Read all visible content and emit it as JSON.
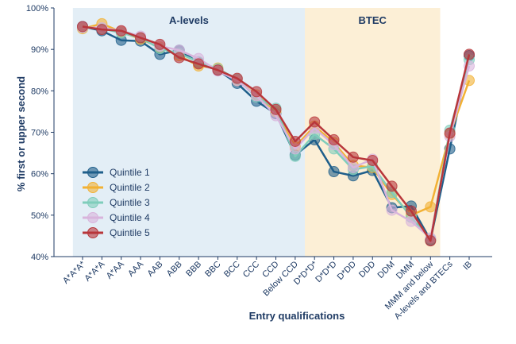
{
  "chart_data": {
    "type": "line",
    "xlabel": "Entry qualifications",
    "ylabel": "% first or upper second",
    "ylim": [
      40,
      100
    ],
    "yticks": [
      40,
      50,
      60,
      70,
      80,
      90,
      100
    ],
    "ytick_suffix": "%",
    "categories": [
      "A*A*A*",
      "A*A*A",
      "A*AA",
      "AAA",
      "AAB",
      "ABB",
      "BBB",
      "BBC",
      "BCC",
      "CCC",
      "CCD",
      "Below CCD",
      "D*D*D*",
      "D*D*D",
      "D*DD",
      "DDD",
      "DDM",
      "DMM",
      "MMM and below",
      "A-levels and BTECs",
      "IB"
    ],
    "regions": [
      {
        "label": "A-levels",
        "from": "A*A*A*",
        "to": "Below CCD",
        "color": "#e3eef6"
      },
      {
        "label": "BTEC",
        "from": "D*D*D*",
        "to": "MMM and below",
        "color": "#fcefd6"
      }
    ],
    "legend_position": "bottom-left",
    "grid": false,
    "series": [
      {
        "name": "Quintile 1",
        "color": "#1f5f8b",
        "values": [
          95.5,
          94.5,
          92.2,
          92.0,
          88.8,
          89.8,
          86.8,
          85.0,
          81.8,
          77.5,
          74.5,
          64.5,
          68.2,
          60.5,
          59.5,
          60.8,
          51.8,
          52.2,
          44.0,
          66.0,
          88.5
        ]
      },
      {
        "name": "Quintile 2",
        "color": "#f2b134",
        "values": [
          95.0,
          96.2,
          94.2,
          92.5,
          90.5,
          88.5,
          86.0,
          85.5,
          82.5,
          79.0,
          75.0,
          66.5,
          71.5,
          67.5,
          62.0,
          61.5,
          55.0,
          50.0,
          52.0,
          69.5,
          82.5
        ]
      },
      {
        "name": "Quintile 3",
        "color": "#7fcdbb",
        "values": [
          95.3,
          95.0,
          94.0,
          92.8,
          90.2,
          89.0,
          87.0,
          85.3,
          82.8,
          78.5,
          75.8,
          64.2,
          69.5,
          66.0,
          61.0,
          61.8,
          55.5,
          49.5,
          44.2,
          70.5,
          87.5
        ]
      },
      {
        "name": "Quintile 4",
        "color": "#d8b4dc",
        "values": [
          95.3,
          95.2,
          94.5,
          93.2,
          90.8,
          89.8,
          87.8,
          84.8,
          82.5,
          78.8,
          74.0,
          66.0,
          71.0,
          67.0,
          61.5,
          63.5,
          51.2,
          48.5,
          44.5,
          69.0,
          86.0
        ]
      },
      {
        "name": "Quintile 5",
        "color": "#b8363a",
        "values": [
          95.5,
          94.8,
          94.5,
          92.8,
          91.2,
          88.0,
          86.5,
          85.0,
          83.0,
          79.8,
          75.5,
          67.8,
          72.5,
          68.2,
          64.0,
          63.2,
          57.0,
          51.0,
          43.8,
          69.8,
          88.8
        ]
      }
    ]
  }
}
